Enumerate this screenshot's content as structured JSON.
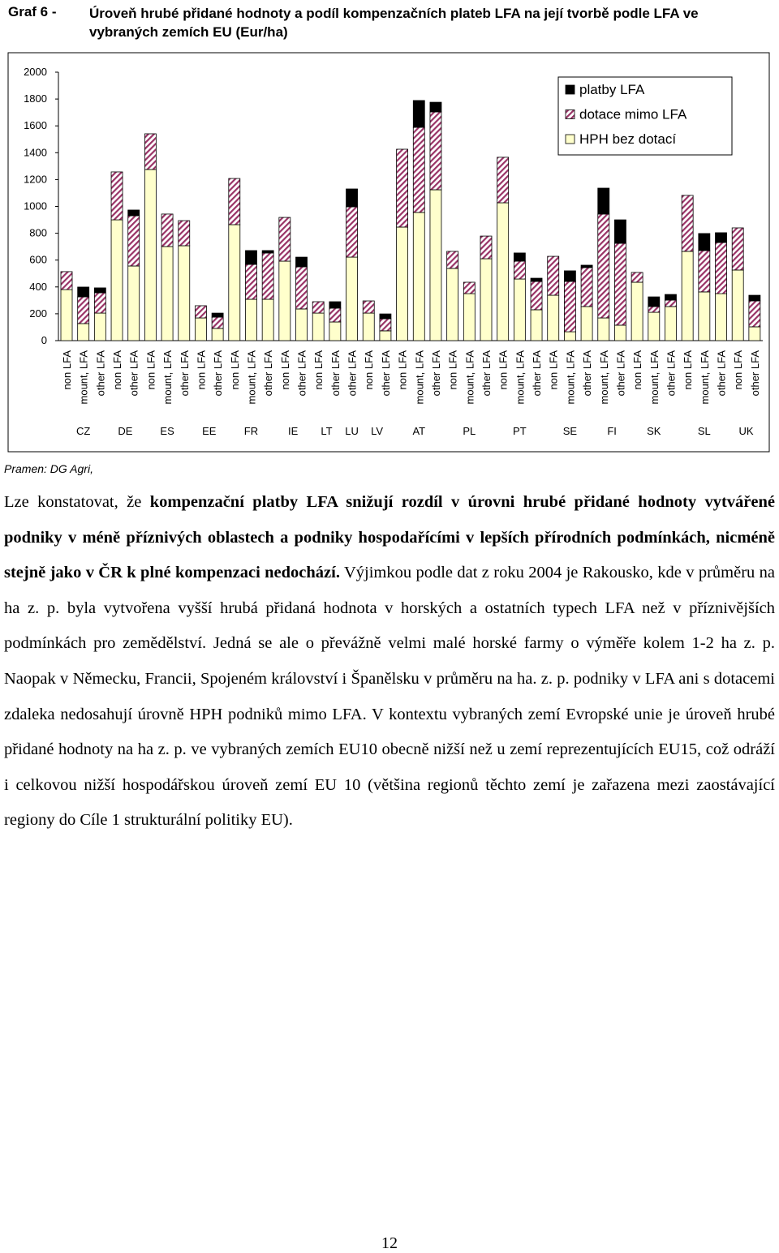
{
  "chart_data": {
    "type": "stacked_bar",
    "figure_label": "Graf 6 -",
    "title": "Úroveň hrubé přidané hodnoty a podíl kompenzačních plateb LFA na její tvorbě podle LFA ve vybraných zemích EU (Eur/ha)",
    "groups": [
      {
        "name": "CZ",
        "categories": [
          "non LFA",
          "mount, LFA",
          "other LFA"
        ]
      },
      {
        "name": "DE",
        "categories": [
          "non LFA",
          "other LFA"
        ]
      },
      {
        "name": "ES",
        "categories": [
          "non LFA",
          "mount, LFA",
          "other LFA"
        ]
      },
      {
        "name": "EE",
        "categories": [
          "non LFA",
          "other LFA"
        ]
      },
      {
        "name": "FR",
        "categories": [
          "non LFA",
          "mount, LFA",
          "other LFA"
        ]
      },
      {
        "name": "IE",
        "categories": [
          "non LFA",
          "other LFA"
        ]
      },
      {
        "name": "LT",
        "categories": [
          "non LFA",
          "other LFA"
        ]
      },
      {
        "name": "LU",
        "categories": [
          "other LFA"
        ]
      },
      {
        "name": "LV",
        "categories": [
          "non LFA",
          "other LFA"
        ]
      },
      {
        "name": "AT",
        "categories": [
          "non LFA",
          "mount, LFA",
          "other LFA"
        ]
      },
      {
        "name": "PL",
        "categories": [
          "non LFA",
          "mount, LFA",
          "other LFA"
        ]
      },
      {
        "name": "PT",
        "categories": [
          "non LFA",
          "mount, LFA",
          "other LFA"
        ]
      },
      {
        "name": "SE",
        "categories": [
          "non LFA",
          "mount, LFA",
          "other LFA"
        ]
      },
      {
        "name": "FI",
        "categories": [
          "mount, LFA",
          "other LFA"
        ]
      },
      {
        "name": "SK",
        "categories": [
          "non LFA",
          "mount, LFA",
          "other LFA"
        ]
      },
      {
        "name": "SL",
        "categories": [
          "non LFA",
          "mount, LFA",
          "other LFA"
        ]
      },
      {
        "name": "UK",
        "categories": [
          "non LFA",
          "other LFA"
        ]
      }
    ],
    "series": [
      {
        "name": "HPH bez dotací",
        "color": "#ffffcc",
        "pattern": "solid",
        "values": [
          380,
          127,
          205,
          900,
          556,
          1275,
          701,
          707,
          169,
          91,
          864,
          308,
          308,
          592,
          236,
          205,
          139,
          622,
          205,
          73,
          846,
          955,
          1124,
          538,
          350,
          610,
          1027,
          459,
          230,
          338,
          66,
          254,
          169,
          115,
          435,
          211,
          254,
          665,
          363,
          350,
          526,
          103
        ]
      },
      {
        "name": "dotace mimo LFA",
        "color": "#993366",
        "pattern": "hatch",
        "values": [
          134,
          199,
          151,
          357,
          374,
          266,
          242,
          187,
          91,
          84,
          344,
          260,
          345,
          326,
          314,
          85,
          103,
          375,
          91,
          90,
          580,
          634,
          580,
          127,
          85,
          169,
          339,
          133,
          211,
          290,
          375,
          290,
          774,
          610,
          73,
          43,
          48,
          417,
          308,
          381,
          314,
          193
        ]
      },
      {
        "name": "platby LFA",
        "color": "#000000",
        "pattern": "solid",
        "values": [
          0,
          73,
          37,
          0,
          43,
          0,
          0,
          0,
          0,
          30,
          0,
          103,
          18,
          0,
          72,
          0,
          48,
          133,
          0,
          36,
          0,
          200,
          72,
          0,
          0,
          0,
          0,
          61,
          24,
          0,
          79,
          18,
          193,
          175,
          0,
          72,
          42,
          0,
          127,
          73,
          0,
          42
        ]
      }
    ],
    "ylim": [
      0,
      2000
    ],
    "yticks": [
      0,
      200,
      400,
      600,
      800,
      1000,
      1200,
      1400,
      1600,
      1800,
      2000
    ],
    "grid": false,
    "legend": "top-right",
    "source": "Pramen: DG Agri,"
  },
  "paragraph": [
    {
      "text": "Lze konstatovat, že ",
      "bold": false
    },
    {
      "text": "kompenzační platby LFA snižují rozdíl v úrovni hrubé přidané hodnoty vytvářené podniky v méně příznivých oblastech a podniky hospodařícími v lepších přírodních podmínkách, nicméně stejně jako v ČR k plné kompenzaci nedochází.",
      "bold": true
    },
    {
      "text": " Výjimkou podle dat z roku 2004 je Rakousko, kde v průměru na ha z. p. byla vytvořena vyšší hrubá přidaná hodnota v horských a ostatních typech LFA než v příznivějších podmínkách pro zemědělství. Jedná se ale o převážně velmi malé horské farmy o výměře kolem 1-2 ha z. p. Naopak v Německu, Francii, Spojeném království i Španělsku v průměru na ha. z. p. podniky v LFA ani s dotacemi zdaleka nedosahují úrovně HPH podniků mimo LFA. V kontextu vybraných zemí Evropské unie je úroveň hrubé přidané hodnoty na ha z. p. ve vybraných zemích EU10 obecně nižší než u zemí reprezentujících EU15, což odráží i celkovou nižší hospodářskou úroveň zemí EU 10 (většina regionů těchto zemí je zařazena mezi zaostávající regiony do Cíle 1 strukturální politiky EU).",
      "bold": false
    }
  ],
  "page_number": "12"
}
